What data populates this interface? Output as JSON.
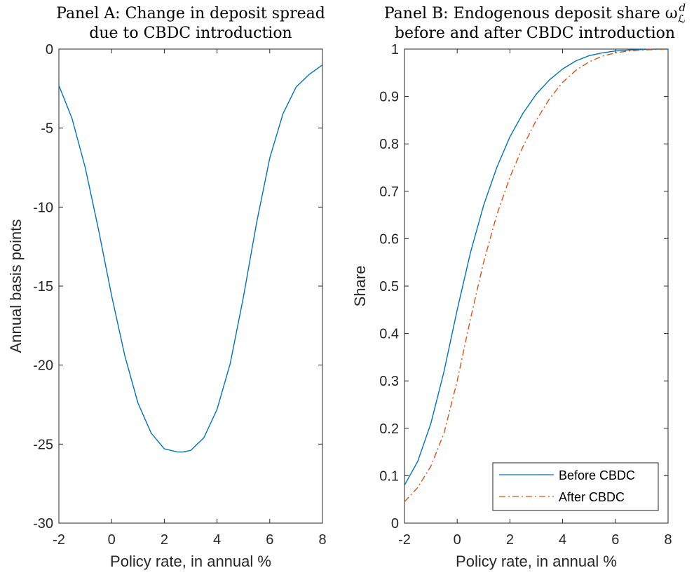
{
  "chart_data": [
    {
      "type": "line",
      "title_line1": "Panel A: Change in deposit spread",
      "title_line2": "due to CBDC introduction",
      "xlabel": "Policy rate, in annual %",
      "ylabel": "Annual basis points",
      "xlim": [
        -2,
        8
      ],
      "ylim": [
        -30,
        0
      ],
      "xticks": [
        "-2",
        "0",
        "2",
        "4",
        "6",
        "8"
      ],
      "yticks": [
        "0",
        "-5",
        "-10",
        "-15",
        "-20",
        "-25",
        "-30"
      ],
      "grid": false,
      "series": [
        {
          "color": "#0072BD",
          "style": "solid",
          "x": [
            -2.0,
            -1.5,
            -1.0,
            -0.5,
            0.0,
            0.5,
            1.0,
            1.5,
            2.0,
            2.5,
            2.7,
            3.0,
            3.5,
            4.0,
            4.5,
            5.0,
            5.5,
            6.0,
            6.5,
            7.0,
            7.5,
            8.0
          ],
          "y": [
            -2.3,
            -4.4,
            -7.5,
            -11.4,
            -15.6,
            -19.4,
            -22.4,
            -24.3,
            -25.3,
            -25.5,
            -25.5,
            -25.4,
            -24.6,
            -22.8,
            -19.9,
            -15.7,
            -11.0,
            -6.9,
            -4.1,
            -2.4,
            -1.6,
            -1.0
          ]
        }
      ]
    },
    {
      "type": "line",
      "title_line1": "Panel B: Endogenous deposit share ω",
      "title_sup": "d",
      "title_sub": "ℒ",
      "title_line2": "before and after CBDC introduction",
      "xlabel": "Policy rate, in annual %",
      "ylabel": "Share",
      "xlim": [
        -2,
        8
      ],
      "ylim": [
        0,
        1
      ],
      "xticks": [
        "-2",
        "0",
        "2",
        "4",
        "6",
        "8"
      ],
      "yticks": [
        "0",
        "0.1",
        "0.2",
        "0.3",
        "0.4",
        "0.5",
        "0.6",
        "0.7",
        "0.8",
        "0.9",
        "1"
      ],
      "grid": false,
      "legend_position": "bottom-right",
      "series": [
        {
          "name": "Before CBDC",
          "color": "#0072BD",
          "style": "solid",
          "x": [
            -2.0,
            -1.5,
            -1.0,
            -0.5,
            0.0,
            0.5,
            1.0,
            1.5,
            2.0,
            2.5,
            3.0,
            3.5,
            4.0,
            4.5,
            5.0,
            5.5,
            6.0,
            6.5,
            7.0,
            7.5,
            8.0
          ],
          "y": [
            0.08,
            0.13,
            0.21,
            0.32,
            0.45,
            0.57,
            0.67,
            0.75,
            0.815,
            0.865,
            0.905,
            0.935,
            0.958,
            0.975,
            0.986,
            0.992,
            0.996,
            0.998,
            0.999,
            1.0,
            1.0
          ]
        },
        {
          "name": "After CBDC",
          "color": "#D95319",
          "style": "dashdot",
          "x": [
            -2.0,
            -1.5,
            -1.0,
            -0.5,
            0.0,
            0.5,
            1.0,
            1.5,
            2.0,
            2.5,
            3.0,
            3.5,
            4.0,
            4.5,
            5.0,
            5.5,
            6.0,
            6.5,
            7.0,
            7.5,
            8.0
          ],
          "y": [
            0.045,
            0.075,
            0.12,
            0.19,
            0.3,
            0.43,
            0.55,
            0.65,
            0.73,
            0.795,
            0.85,
            0.895,
            0.93,
            0.955,
            0.973,
            0.985,
            0.992,
            0.996,
            0.998,
            0.999,
            1.0
          ]
        }
      ]
    }
  ]
}
